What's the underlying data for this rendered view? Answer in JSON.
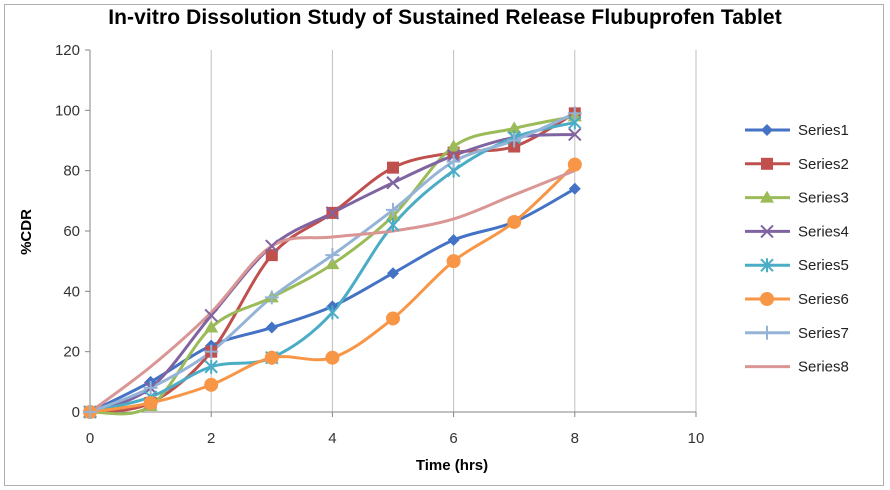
{
  "chart_data": {
    "type": "line",
    "title": "In-vitro Dissolution Study of Sustained Release Flubuprofen Tablet",
    "xlabel": "Time (hrs)",
    "ylabel": "%CDR",
    "xlim": [
      0,
      10
    ],
    "ylim": [
      0,
      120
    ],
    "xticks": [
      0,
      2,
      4,
      6,
      8,
      10
    ],
    "yticks": [
      0,
      20,
      40,
      60,
      80,
      100,
      120
    ],
    "grid": "vertical",
    "legend_position": "right",
    "x": [
      0,
      1,
      2,
      3,
      4,
      5,
      6,
      7,
      8
    ],
    "series": [
      {
        "name": "Series1",
        "color": "#4472C4",
        "marker": "diamond",
        "values": [
          0,
          10,
          22,
          28,
          35,
          46,
          57,
          63,
          74
        ]
      },
      {
        "name": "Series2",
        "color": "#C0504D",
        "marker": "square",
        "values": [
          0,
          3,
          20,
          52,
          66,
          81,
          86,
          88,
          99
        ]
      },
      {
        "name": "Series3",
        "color": "#9BBB59",
        "marker": "triangle",
        "values": [
          0,
          2,
          28,
          38,
          49,
          65,
          88,
          94,
          98
        ]
      },
      {
        "name": "Series4",
        "color": "#8064A2",
        "marker": "x",
        "values": [
          0,
          8,
          32,
          55,
          66,
          76,
          85,
          91,
          92
        ]
      },
      {
        "name": "Series5",
        "color": "#4BACC6",
        "marker": "star",
        "values": [
          0,
          5,
          15,
          18,
          33,
          62,
          80,
          91,
          96
        ]
      },
      {
        "name": "Series6",
        "color": "#F79646",
        "marker": "circle",
        "values": [
          0,
          3,
          9,
          18,
          18,
          31,
          50,
          63,
          82
        ]
      },
      {
        "name": "Series7",
        "color": "#95B3D7",
        "marker": "plus",
        "values": [
          0,
          8,
          20,
          38,
          52,
          67,
          83,
          90,
          99
        ]
      },
      {
        "name": "Series8",
        "color": "#D99694",
        "marker": "none",
        "values": [
          0,
          15,
          33,
          55,
          58,
          60,
          64,
          72,
          80
        ]
      }
    ]
  }
}
